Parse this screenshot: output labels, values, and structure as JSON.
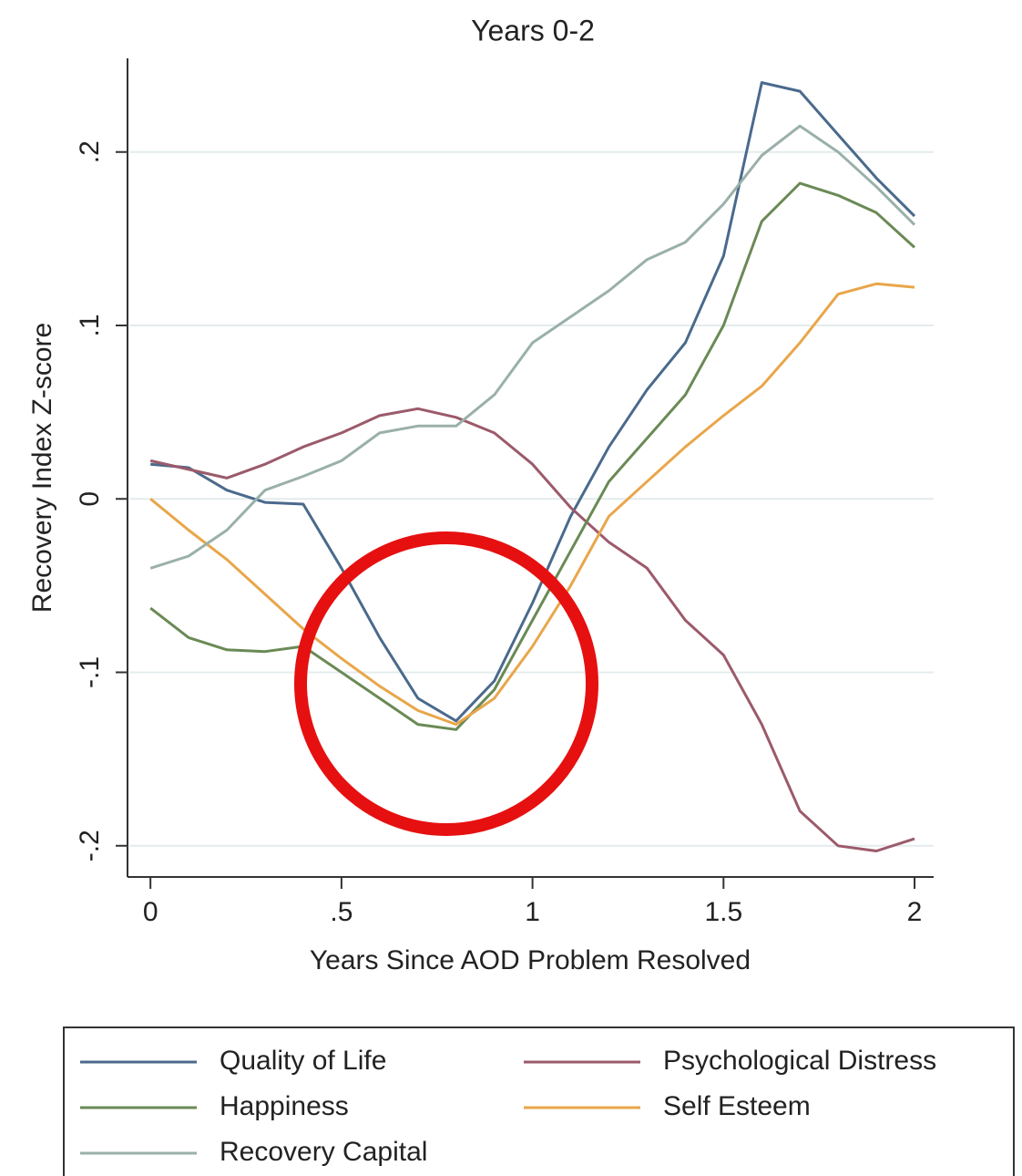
{
  "chart_data": {
    "type": "line",
    "title": "Years 0-2",
    "xlabel": "Years Since AOD Problem Resolved",
    "ylabel": "Recovery Index Z-score",
    "x": [
      0,
      0.1,
      0.2,
      0.3,
      0.4,
      0.5,
      0.6,
      0.7,
      0.8,
      0.9,
      1.0,
      1.1,
      1.2,
      1.3,
      1.4,
      1.5,
      1.6,
      1.7,
      1.8,
      1.9,
      2.0
    ],
    "series": [
      {
        "name": "Quality of Life",
        "color": "#4a6a8c",
        "values": [
          0.02,
          0.018,
          0.005,
          -0.002,
          -0.003,
          -0.04,
          -0.08,
          -0.115,
          -0.128,
          -0.105,
          -0.06,
          -0.01,
          0.03,
          0.063,
          0.09,
          0.14,
          0.24,
          0.235,
          0.21,
          0.185,
          0.163
        ]
      },
      {
        "name": "Psychological Distress",
        "color": "#9b5a6a",
        "values": [
          0.022,
          0.017,
          0.012,
          0.02,
          0.03,
          0.038,
          0.048,
          0.052,
          0.047,
          0.038,
          0.02,
          -0.005,
          -0.025,
          -0.04,
          -0.07,
          -0.09,
          -0.13,
          -0.18,
          -0.2,
          -0.203,
          -0.196
        ]
      },
      {
        "name": "Happiness",
        "color": "#6a8a55",
        "values": [
          -0.063,
          -0.08,
          -0.087,
          -0.088,
          -0.085,
          -0.1,
          -0.115,
          -0.13,
          -0.133,
          -0.11,
          -0.07,
          -0.03,
          0.01,
          0.035,
          0.06,
          0.1,
          0.16,
          0.182,
          0.175,
          0.165,
          0.145
        ]
      },
      {
        "name": "Self Esteem",
        "color": "#e8a64a",
        "values": [
          0.0,
          -0.018,
          -0.035,
          -0.055,
          -0.075,
          -0.092,
          -0.108,
          -0.122,
          -0.13,
          -0.115,
          -0.085,
          -0.05,
          -0.01,
          0.01,
          0.03,
          0.048,
          0.065,
          0.09,
          0.118,
          0.124,
          0.122
        ]
      },
      {
        "name": "Recovery Capital",
        "color": "#9ab0aa",
        "values": [
          -0.04,
          -0.033,
          -0.018,
          0.005,
          0.013,
          0.022,
          0.038,
          0.042,
          0.042,
          0.06,
          0.09,
          0.105,
          0.12,
          0.138,
          0.148,
          0.17,
          0.198,
          0.215,
          0.2,
          0.18,
          0.158
        ]
      }
    ],
    "xlim": [
      -0.06,
      2.05
    ],
    "ylim": [
      -0.218,
      0.254
    ],
    "xticks": [
      0,
      {
        "value": 0.5,
        "label": ".5"
      },
      1,
      {
        "value": 1.5,
        "label": "1.5"
      },
      2
    ],
    "yticks": [
      {
        "value": -0.2,
        "label": "-.2"
      },
      {
        "value": -0.1,
        "label": "-.1"
      },
      0,
      {
        "value": 0.1,
        "label": ".1"
      },
      {
        "value": 0.2,
        "label": ".2"
      }
    ],
    "grid": true
  }
}
